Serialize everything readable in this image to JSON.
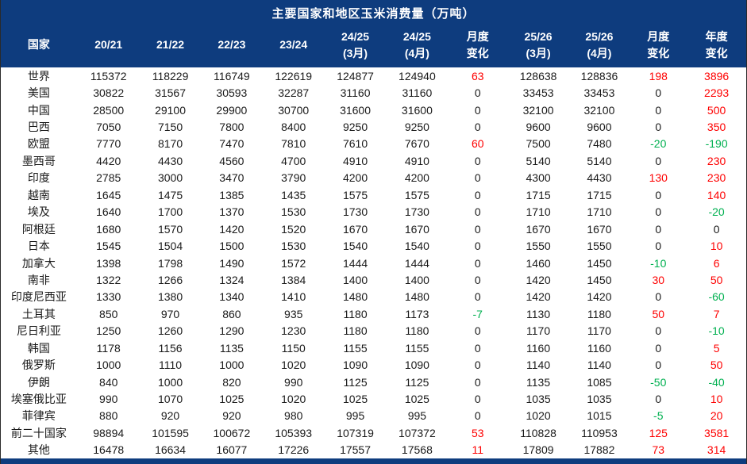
{
  "title": "主要国家和地区玉米消费量（万吨）",
  "colors": {
    "header_bg": "#0e3c7e",
    "header_text": "#ffffff",
    "body_bg": "#ffffff",
    "body_text": "#1a1a1a",
    "positive_change": "#fe0000",
    "negative_change": "#00b050"
  },
  "chart_data": {
    "type": "table",
    "title": "主要国家和地区玉米消费量（万吨）",
    "columns": [
      {
        "label": "国家",
        "sub": ""
      },
      {
        "label": "20/21",
        "sub": ""
      },
      {
        "label": "21/22",
        "sub": ""
      },
      {
        "label": "22/23",
        "sub": ""
      },
      {
        "label": "23/24",
        "sub": ""
      },
      {
        "label": "24/25",
        "sub": "(3月)"
      },
      {
        "label": "24/25",
        "sub": "(4月)"
      },
      {
        "label": "月度",
        "sub": "变化"
      },
      {
        "label": "25/26",
        "sub": "(3月)"
      },
      {
        "label": "25/26",
        "sub": "(4月)"
      },
      {
        "label": "月度",
        "sub": "变化"
      },
      {
        "label": "年度",
        "sub": "变化"
      }
    ],
    "change_value_indices": [
      6,
      9,
      10
    ],
    "rows": [
      {
        "country": "世界",
        "values": [
          115372,
          118229,
          116749,
          122619,
          124877,
          124940,
          63,
          128638,
          128836,
          198,
          3896
        ]
      },
      {
        "country": "美国",
        "values": [
          30822,
          31567,
          30593,
          32287,
          31160,
          31160,
          0,
          33453,
          33453,
          0,
          2293
        ]
      },
      {
        "country": "中国",
        "values": [
          28500,
          29100,
          29900,
          30700,
          31600,
          31600,
          0,
          32100,
          32100,
          0,
          500
        ]
      },
      {
        "country": "巴西",
        "values": [
          7050,
          7150,
          7800,
          8400,
          9250,
          9250,
          0,
          9600,
          9600,
          0,
          350
        ]
      },
      {
        "country": "欧盟",
        "values": [
          7770,
          8170,
          7470,
          7810,
          7610,
          7670,
          60,
          7500,
          7480,
          -20,
          -190
        ]
      },
      {
        "country": "墨西哥",
        "values": [
          4420,
          4430,
          4560,
          4700,
          4910,
          4910,
          0,
          5140,
          5140,
          0,
          230
        ]
      },
      {
        "country": "印度",
        "values": [
          2785,
          3000,
          3470,
          3790,
          4200,
          4200,
          0,
          4300,
          4430,
          130,
          230
        ]
      },
      {
        "country": "越南",
        "values": [
          1645,
          1475,
          1385,
          1435,
          1575,
          1575,
          0,
          1715,
          1715,
          0,
          140
        ]
      },
      {
        "country": "埃及",
        "values": [
          1640,
          1700,
          1370,
          1530,
          1730,
          1730,
          0,
          1710,
          1710,
          0,
          -20
        ]
      },
      {
        "country": "阿根廷",
        "values": [
          1680,
          1570,
          1420,
          1520,
          1670,
          1670,
          0,
          1670,
          1670,
          0,
          0
        ]
      },
      {
        "country": "日本",
        "values": [
          1545,
          1504,
          1500,
          1530,
          1540,
          1540,
          0,
          1550,
          1550,
          0,
          10
        ]
      },
      {
        "country": "加拿大",
        "values": [
          1398,
          1798,
          1490,
          1572,
          1444,
          1444,
          0,
          1460,
          1450,
          -10,
          6
        ]
      },
      {
        "country": "南非",
        "values": [
          1322,
          1266,
          1324,
          1384,
          1400,
          1400,
          0,
          1420,
          1450,
          30,
          50
        ]
      },
      {
        "country": "印度尼西亚",
        "values": [
          1330,
          1380,
          1340,
          1410,
          1480,
          1480,
          0,
          1420,
          1420,
          0,
          -60
        ]
      },
      {
        "country": "土耳其",
        "values": [
          850,
          970,
          860,
          935,
          1180,
          1173,
          -7,
          1130,
          1180,
          50,
          7
        ]
      },
      {
        "country": "尼日利亚",
        "values": [
          1250,
          1260,
          1290,
          1230,
          1180,
          1180,
          0,
          1170,
          1170,
          0,
          -10
        ]
      },
      {
        "country": "韩国",
        "values": [
          1178,
          1156,
          1135,
          1150,
          1155,
          1155,
          0,
          1160,
          1160,
          0,
          5
        ]
      },
      {
        "country": "俄罗斯",
        "values": [
          1000,
          1110,
          1000,
          1020,
          1090,
          1090,
          0,
          1140,
          1140,
          0,
          50
        ]
      },
      {
        "country": "伊朗",
        "values": [
          840,
          1000,
          820,
          990,
          1125,
          1125,
          0,
          1135,
          1085,
          -50,
          -40
        ]
      },
      {
        "country": "埃塞俄比亚",
        "values": [
          990,
          1070,
          1025,
          1020,
          1025,
          1025,
          0,
          1035,
          1035,
          0,
          10
        ]
      },
      {
        "country": "菲律宾",
        "values": [
          880,
          920,
          920,
          980,
          995,
          995,
          0,
          1020,
          1015,
          -5,
          20
        ]
      },
      {
        "country": "前二十国家",
        "values": [
          98894,
          101595,
          100672,
          105393,
          107319,
          107372,
          53,
          110828,
          110953,
          125,
          3581
        ]
      },
      {
        "country": "其他",
        "values": [
          16478,
          16634,
          16077,
          17226,
          17557,
          17568,
          11,
          17809,
          17882,
          73,
          314
        ]
      }
    ]
  }
}
